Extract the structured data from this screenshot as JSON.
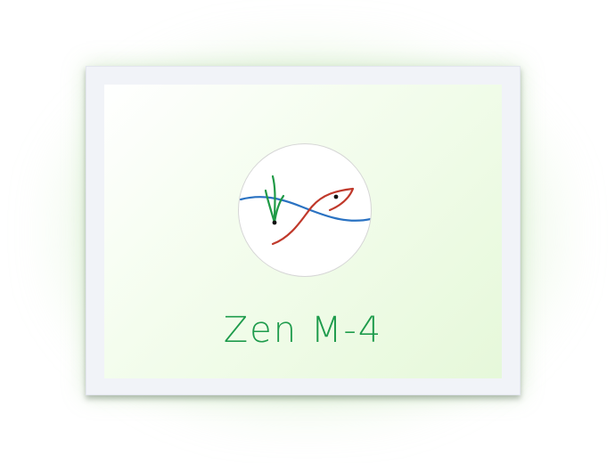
{
  "title": "Zen M-4",
  "icon": "fish-and-grass-logo",
  "colors": {
    "title": "#1e9b4c",
    "grass": "#1f9a46",
    "water": "#2a72c2",
    "fish": "#c0392b",
    "panel": "#eefbe6",
    "frame": "#f1f3f8"
  }
}
